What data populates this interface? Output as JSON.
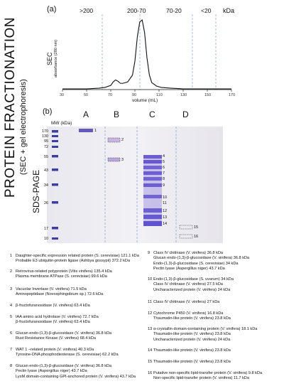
{
  "side_title": "PROTEIN FRACTIONATION",
  "side_subtitle": "(SEC + gel electrophoresis)",
  "panel_a": {
    "label": "(a)",
    "ranges": [
      ">200",
      "200-70",
      "70-20",
      "<20"
    ],
    "unit": "kDa",
    "ylabel_line1": "SEC",
    "ylabel_line2": "absorbance (280 nm)",
    "xlabel": "volume (mL)",
    "xticks": [
      "30",
      "50",
      "70",
      "90",
      "110",
      "130",
      "150",
      "170"
    ]
  },
  "panel_b": {
    "label": "(b)",
    "mw_header": "MW (kDa)",
    "side_label": "SDS-PAGE",
    "lanes": [
      "A",
      "B",
      "C",
      "D"
    ],
    "mw_markers": [
      "170",
      "130",
      "95",
      "72",
      "55",
      "43",
      "34",
      "26",
      "17",
      "10"
    ],
    "band_numbers": [
      "1",
      "2",
      "3",
      "4",
      "5",
      "6",
      "7",
      "8",
      "9",
      "10",
      "11",
      "12",
      "13",
      "14",
      "15",
      "16"
    ]
  },
  "chart_data": {
    "type": "line",
    "xlabel": "volume (mL)",
    "ylabel": "SEC absorbance (280 nm)",
    "xlim": [
      30,
      170
    ],
    "x": [
      30,
      40,
      50,
      60,
      65,
      70,
      72,
      74,
      76,
      78,
      80,
      84,
      88,
      90,
      92,
      94,
      96,
      98,
      100,
      102,
      104,
      108,
      112,
      120,
      130,
      140,
      150,
      160,
      170
    ],
    "y": [
      0.0,
      0.0,
      0.0,
      0.01,
      0.02,
      0.05,
      0.1,
      0.13,
      0.11,
      0.08,
      0.08,
      0.1,
      0.2,
      0.4,
      0.75,
      0.97,
      1.0,
      0.82,
      0.45,
      0.2,
      0.09,
      0.04,
      0.02,
      0.01,
      0.0,
      0.0,
      0.0,
      0.0,
      0.0
    ]
  },
  "annotations_left": [
    {
      "num": "1",
      "lines": [
        "Daughter-specific expression related protein (S. cerevisiae) 121.1 kDa",
        "Probable E3 ubiquitin-protein ligase (Ashbya gossypii) 372.2 kDa"
      ]
    },
    {
      "num": "2",
      "lines": [
        "Retrovirus-related polyprotein (Vitis vinifera) 135.4 kDa",
        "Plasma membrane ATPase (S. cerevisiae) 99.6 kDa"
      ]
    },
    {
      "num": "3",
      "lines": [
        "Vacuolar Invertase (V. vinifera) 71.5 kDa",
        "Aminopeptidase (Novosphingobium sp.) 72.6 kDa"
      ]
    },
    {
      "num": "4",
      "lines": [
        "β-fructofuranosidase (V. vinifera) 63.4 kDa"
      ]
    },
    {
      "num": "5",
      "lines": [
        "IAA amino acid hydrolase (V. vinifera) 72.7 kDa",
        "β-fructofuranosidase (V. vinifera) 63.4 kDa"
      ]
    },
    {
      "num": "6",
      "lines": [
        "Glucan endo-(1,3)-β-glucosidase (V. vinifera) 36.8 kDa",
        "Rust Resistance Kinase (V. vinifera) 68.4 kDa"
      ]
    },
    {
      "num": "7",
      "lines": [
        "WAT 1 –related protein (V. vinifera) 40.3 kDa",
        "Tyrosine-DNA phosphodiesterase (S. cerevisiae) 62.2 kDa"
      ]
    },
    {
      "num": "8",
      "lines": [
        "Glucan endo-(1,3)-β-glucosidase (V. vinifera) 36.8 kDa",
        "Pectin lyase (Aspergillus niger) 43.7 kDa",
        "LysM domain-containing GPI-anchored protein  (V. vinifera) 43.7 kDa"
      ]
    }
  ],
  "annotations_right": [
    {
      "num": "9",
      "lines": [
        "Class IV chitinase (V. vinifera) 36.8 kDa",
        "Glucan endo-(1,3)-β-glucosidase (V. vinifera) 36.8 kDa",
        "Endo-(1,3)-β-glucosidase (S. cerevisiae) 34 kDa",
        "Pectin lyase (Aspergillus niger) 43.7 kDa"
      ]
    },
    {
      "num": "10",
      "lines": [
        "Endo-(1,3)-β-glucosidase (S. uvarum) 34 kDa",
        "Class IV chitinase (V. vinifera) 27.5 kDa",
        "Uncharacterized protein (V. vinifera) 24 kDa"
      ]
    },
    {
      "num": "11",
      "lines": [
        "Class IV chitinase (V. vinifera) 27 kDa"
      ]
    },
    {
      "num": "12",
      "lines": [
        "Cytochrome P450 (V. vinifera) 16.8 kDa",
        "Thaumatin-like protein (V. vinifera) 23.8 kDa"
      ]
    },
    {
      "num": "13",
      "lines": [
        "α-crystallin domain-containing protein (V. vinifera) 18.1 kDa",
        "Thaumatin-like protein (V. vinifera) 23.8 kDa",
        "Uncharacterized protein (V. vinifera) 24 kDa"
      ]
    },
    {
      "num": "14",
      "lines": [
        "Thaumatin-like protein (V. vinifera) 23.8 kDa"
      ]
    },
    {
      "num": "15",
      "lines": [
        "Thaumatin-like protein (V. vinifera) 23.8 kDa"
      ]
    },
    {
      "num": "16",
      "lines": [
        "Putative non-specific lipid-transfer protein (V. vinifera) 9.8 kDa",
        "Non-specific lipid-transfer protein  (V. vinifera) 11.7 kDa"
      ]
    }
  ]
}
